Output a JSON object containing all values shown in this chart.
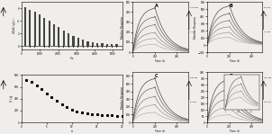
{
  "bg_color": "#f0eeea",
  "itc_top": {
    "n_peaks": 20,
    "peak_heights": [
      6.2,
      5.8,
      5.5,
      5.0,
      4.5,
      4.0,
      3.5,
      3.0,
      2.5,
      2.0,
      1.6,
      1.3,
      1.0,
      0.8,
      0.6,
      0.5,
      0.4,
      0.35,
      0.3,
      0.25
    ],
    "xlabel": "t/s",
    "ylabel": "dQ/dt / μJ s⁻¹",
    "ylim": [
      -0.5,
      7
    ],
    "xlim": [
      0,
      5500
    ]
  },
  "itc_bottom": {
    "xlabel": "n",
    "ylabel": "U / μJ",
    "ylim": [
      0,
      800
    ],
    "xlim": [
      0,
      20
    ],
    "x_data": [
      1,
      2,
      3,
      4,
      5,
      6,
      7,
      8,
      9,
      10,
      11,
      12,
      13,
      14,
      15,
      16,
      17,
      18,
      19,
      20
    ],
    "y_data": [
      720,
      680,
      620,
      560,
      490,
      420,
      360,
      300,
      250,
      210,
      180,
      160,
      145,
      135,
      128,
      122,
      118,
      115,
      112,
      110
    ]
  },
  "spr_A": {
    "label": "A",
    "xlabel": "Time (s)",
    "ylabel": "Relative Response",
    "ylim": [
      0,
      500
    ],
    "xlim": [
      0,
      500
    ],
    "n_curves": 6,
    "max_vals": [
      450,
      360,
      280,
      200,
      140,
      80
    ],
    "top_label": "14.9 nM",
    "bot_label": "1 nM"
  },
  "spr_B": {
    "label": "B",
    "xlabel": "Time (s)",
    "ylabel": "Relative Response",
    "ylim": [
      -100,
      600
    ],
    "xlim": [
      0,
      500
    ],
    "n_curves": 6,
    "max_vals": [
      560,
      450,
      350,
      260,
      180,
      110
    ],
    "top_label": "82 nM",
    "bot_label": "21 nM"
  },
  "spr_C": {
    "label": "C",
    "xlabel": "Time (s)",
    "ylabel": "Relative Response",
    "ylim": [
      0,
      650
    ],
    "xlim": [
      0,
      500
    ],
    "n_curves": 5,
    "max_vals": [
      580,
      460,
      340,
      230,
      130
    ],
    "top_label": "400 nM",
    "bot_label": "12 nM"
  },
  "spr_D": {
    "label": "D",
    "xlabel": "Time (s)",
    "ylabel": "",
    "ylim": [
      0,
      400
    ],
    "xlim": [
      0,
      500
    ],
    "n_curves": 5,
    "max_vals": [
      350,
      270,
      190,
      120,
      60
    ],
    "top_label": "400 nM",
    "bot_label": "0.5 nM",
    "has_inset": true
  }
}
